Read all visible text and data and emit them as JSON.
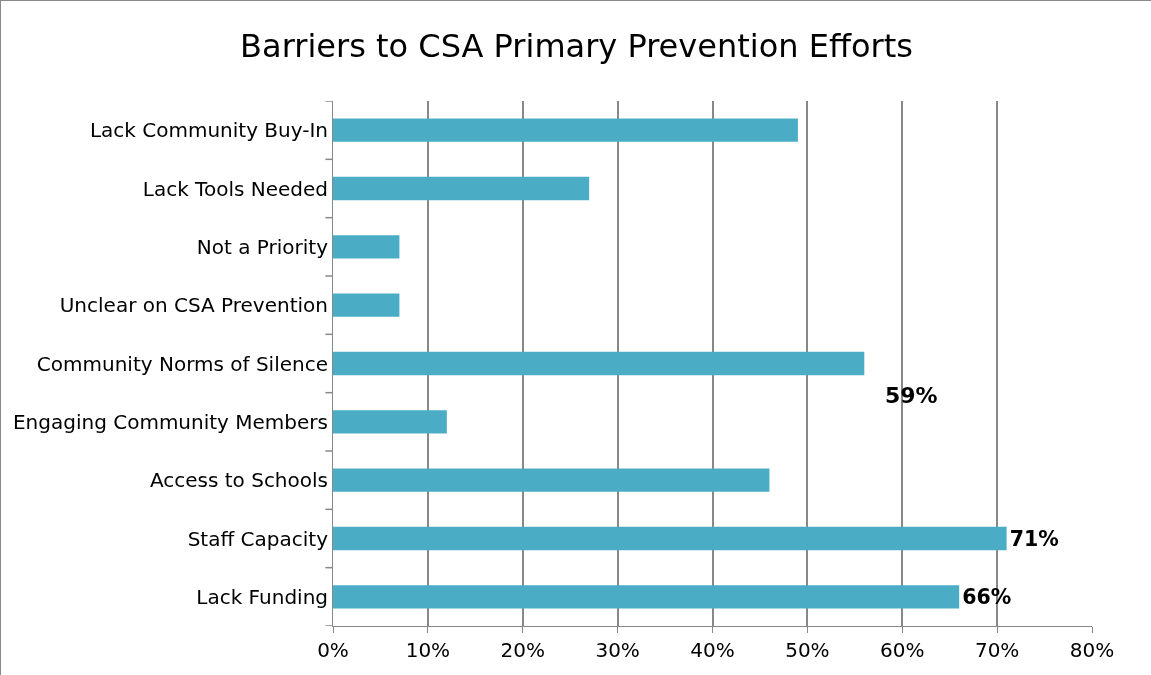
{
  "chart_data": {
    "type": "bar",
    "orientation": "horizontal",
    "title": "Barriers to CSA Primary Prevention Efforts",
    "categories": [
      "Lack Community Buy-In",
      "Lack Tools Needed",
      "Not a Priority",
      "Unclear on CSA Prevention",
      "Community Norms of Silence",
      "Engaging Community Members",
      "Access to Schools",
      "Staff Capacity",
      "Lack Funding"
    ],
    "values": [
      49,
      27,
      7,
      7,
      56,
      12,
      46,
      71,
      66
    ],
    "value_labels": [
      null,
      null,
      null,
      null,
      null,
      null,
      null,
      "71%",
      "66%"
    ],
    "annotations": [
      "59%"
    ],
    "color": "#4bacc6",
    "xlim": [
      0,
      80
    ],
    "xticks": [
      {
        "value": 0,
        "label": "0%"
      },
      {
        "value": 10,
        "label": "10%"
      },
      {
        "value": 20,
        "label": "20%"
      },
      {
        "value": 30,
        "label": "30%"
      },
      {
        "value": 40,
        "label": "40%"
      },
      {
        "value": 50,
        "label": "50%"
      },
      {
        "value": 60,
        "label": "60%"
      },
      {
        "value": 70,
        "label": "70%"
      },
      {
        "value": 80,
        "label": "80%"
      }
    ],
    "grid": "x"
  }
}
